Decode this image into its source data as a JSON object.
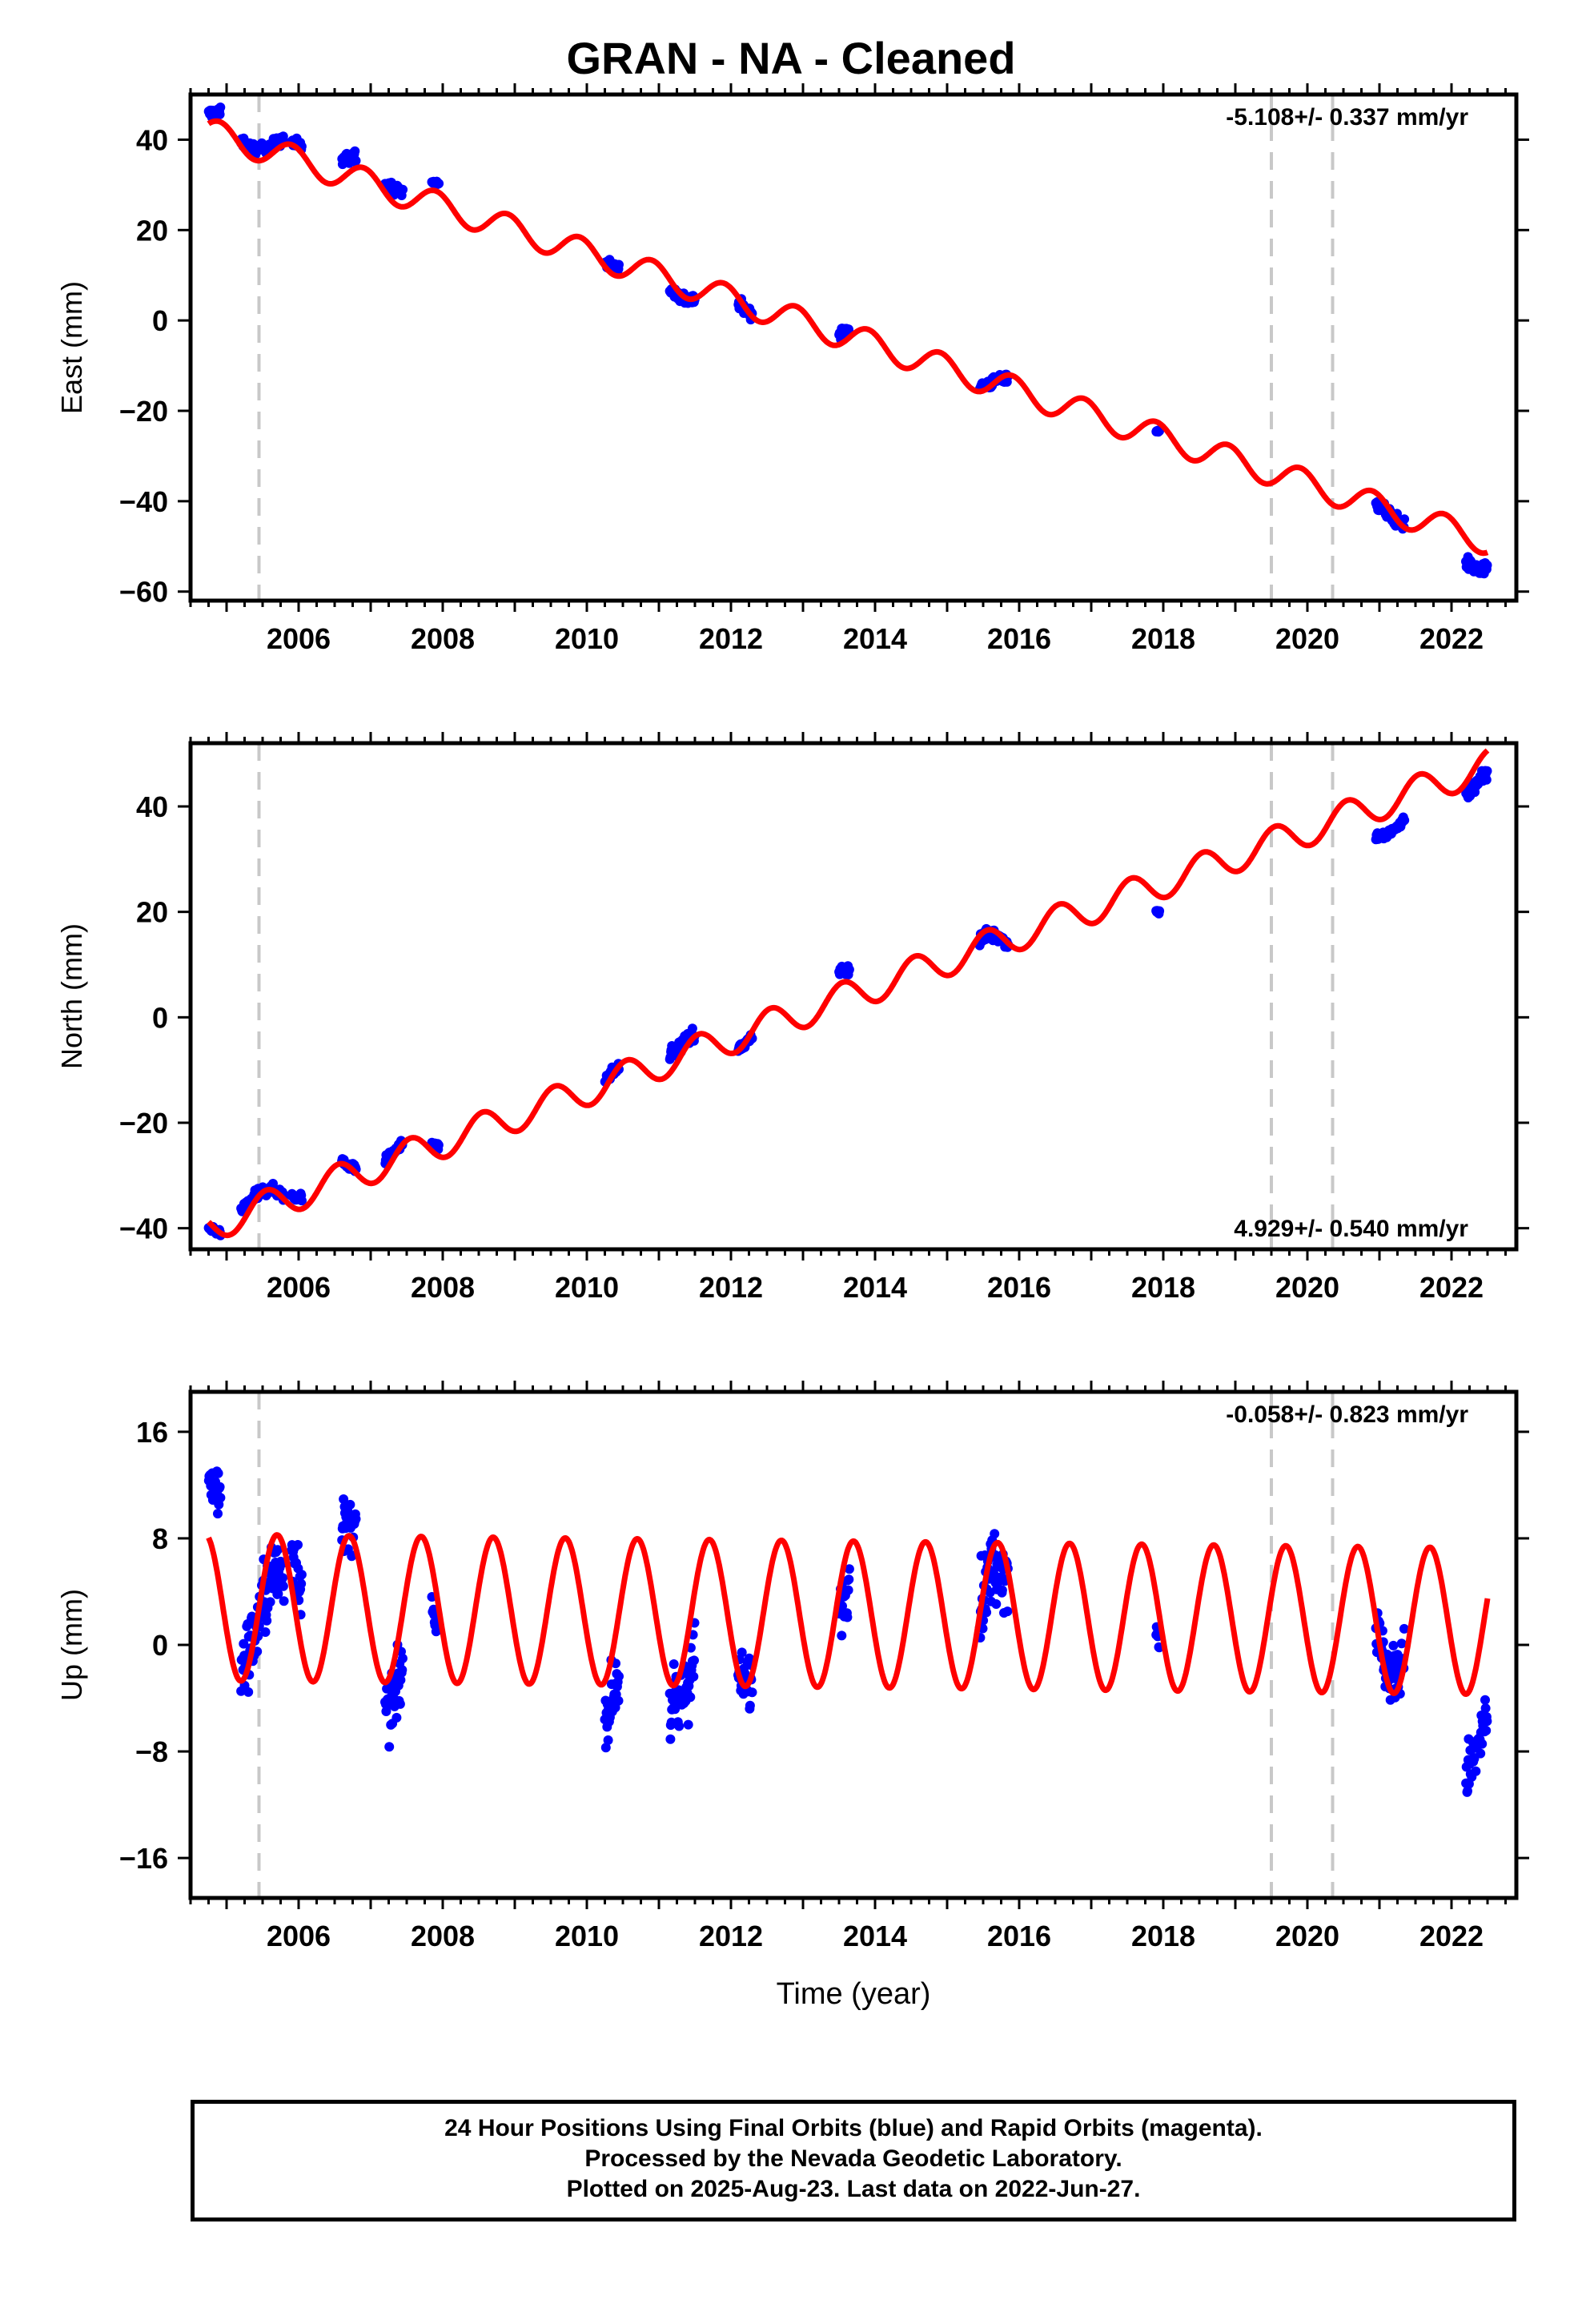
{
  "title": "GRAN  - NA - Cleaned",
  "footer": {
    "line1": "24 Hour Positions Using Final Orbits (blue) and Rapid Orbits (magenta).",
    "line2": "Processed by the Nevada Geodetic Laboratory.",
    "line3": "Plotted on 2025-Aug-23. Last data on 2022-Jun-27."
  },
  "colors": {
    "data": "#0000ff",
    "model": "#ff0000",
    "event_line": "#c8c8c8",
    "axes": "#000000"
  },
  "chart_data": [
    {
      "type": "scatter",
      "component": "East",
      "ylabel": "East (mm)",
      "xlabel": "",
      "xlim": [
        2004.5,
        2022.9
      ],
      "ylim": [
        -62,
        50
      ],
      "xticks": [
        2006,
        2008,
        2010,
        2012,
        2014,
        2016,
        2018,
        2020,
        2022
      ],
      "yticks": [
        -60,
        -40,
        -20,
        0,
        20,
        40
      ],
      "rate_label": "-5.108+/- 0.337 mm/yr",
      "rate_label_position": "top-right",
      "event_lines": [
        2005.45,
        2019.5,
        2020.35
      ],
      "model": {
        "offset_at_2005": 40.5,
        "rate": -5.108,
        "annual_amplitude": 3.0,
        "annual_phase_year": 2005.9
      },
      "data_segments": [
        {
          "start": 2004.75,
          "end": 2004.92,
          "anchor": 46.0,
          "scatter": 2.0
        },
        {
          "start": 2005.2,
          "end": 2005.8,
          "anchor": 38.0,
          "scatter": 2.0
        },
        {
          "start": 2005.9,
          "end": 2006.05,
          "anchor": 39.0,
          "scatter": 2.0
        },
        {
          "start": 2006.6,
          "end": 2006.8,
          "anchor": 36.0,
          "scatter": 2.5
        },
        {
          "start": 2007.2,
          "end": 2007.45,
          "anchor": 29.0,
          "scatter": 2.0
        },
        {
          "start": 2007.85,
          "end": 2007.95,
          "anchor": 30.5,
          "scatter": 1.0
        },
        {
          "start": 2010.25,
          "end": 2010.45,
          "anchor": 12.0,
          "scatter": 2.0
        },
        {
          "start": 2011.15,
          "end": 2011.5,
          "anchor": 5.0,
          "scatter": 2.5
        },
        {
          "start": 2012.1,
          "end": 2012.3,
          "anchor": 2.5,
          "scatter": 2.0
        },
        {
          "start": 2013.5,
          "end": 2013.65,
          "anchor": -2.5,
          "scatter": 2.0
        },
        {
          "start": 2015.45,
          "end": 2015.85,
          "anchor": -13.5,
          "scatter": 2.0
        },
        {
          "start": 2017.9,
          "end": 2017.95,
          "anchor": -24.5,
          "scatter": 0.5
        },
        {
          "start": 2020.95,
          "end": 2021.35,
          "anchor": -43.0,
          "scatter": 2.5
        },
        {
          "start": 2022.2,
          "end": 2022.5,
          "anchor": -55.0,
          "scatter": 2.5
        }
      ]
    },
    {
      "type": "scatter",
      "component": "North",
      "ylabel": "North (mm)",
      "xlabel": "",
      "xlim": [
        2004.5,
        2022.9
      ],
      "ylim": [
        -44,
        52
      ],
      "xticks": [
        2006,
        2008,
        2010,
        2012,
        2014,
        2016,
        2018,
        2020,
        2022
      ],
      "yticks": [
        -40,
        -20,
        0,
        20,
        40
      ],
      "rate_label": "4.929+/- 0.540 mm/yr",
      "rate_label_position": "bottom-right",
      "event_lines": [
        2005.45,
        2019.5,
        2020.35
      ],
      "model": {
        "offset_at_2005": -38.5,
        "rate": 4.929,
        "annual_amplitude": 3.0,
        "annual_phase_year": 2005.55
      },
      "data_segments": [
        {
          "start": 2004.75,
          "end": 2004.92,
          "anchor": -40.5,
          "scatter": 1.0
        },
        {
          "start": 2005.2,
          "end": 2005.8,
          "anchor": -33.0,
          "scatter": 1.8
        },
        {
          "start": 2005.9,
          "end": 2006.05,
          "anchor": -34.0,
          "scatter": 1.5
        },
        {
          "start": 2006.6,
          "end": 2006.8,
          "anchor": -28.0,
          "scatter": 1.5
        },
        {
          "start": 2007.2,
          "end": 2007.45,
          "anchor": -25.5,
          "scatter": 1.5
        },
        {
          "start": 2007.85,
          "end": 2007.95,
          "anchor": -24.5,
          "scatter": 1.0
        },
        {
          "start": 2010.25,
          "end": 2010.45,
          "anchor": -10.5,
          "scatter": 1.5
        },
        {
          "start": 2011.15,
          "end": 2011.5,
          "anchor": -5.0,
          "scatter": 2.5
        },
        {
          "start": 2012.1,
          "end": 2012.3,
          "anchor": -5.0,
          "scatter": 1.2
        },
        {
          "start": 2013.5,
          "end": 2013.65,
          "anchor": 9.0,
          "scatter": 1.5
        },
        {
          "start": 2015.45,
          "end": 2015.85,
          "anchor": 15.5,
          "scatter": 2.0
        },
        {
          "start": 2017.9,
          "end": 2017.95,
          "anchor": 20.0,
          "scatter": 0.8
        },
        {
          "start": 2020.95,
          "end": 2021.35,
          "anchor": 35.0,
          "scatter": 1.5
        },
        {
          "start": 2022.2,
          "end": 2022.5,
          "anchor": 44.5,
          "scatter": 2.5
        }
      ]
    },
    {
      "type": "scatter",
      "component": "Up",
      "ylabel": "Up (mm)",
      "xlabel": "Time (year)",
      "xlim": [
        2004.5,
        2022.9
      ],
      "ylim": [
        -19,
        19
      ],
      "xticks": [
        2006,
        2008,
        2010,
        2012,
        2014,
        2016,
        2018,
        2020,
        2022
      ],
      "yticks": [
        -16,
        -8,
        0,
        8,
        16
      ],
      "rate_label": "-0.058+/- 0.823 mm/yr",
      "rate_label_position": "top-right",
      "event_lines": [
        2005.45,
        2019.5,
        2020.35
      ],
      "model": {
        "offset_at_2005": 2.8,
        "rate": -0.058,
        "annual_amplitude": 5.5,
        "annual_phase_year": 2005.7
      },
      "data_segments": [
        {
          "start": 2004.75,
          "end": 2004.92,
          "anchor": 12.0,
          "scatter": 4.0
        },
        {
          "start": 2005.2,
          "end": 2005.8,
          "anchor": 3.0,
          "scatter": 5.0
        },
        {
          "start": 2005.9,
          "end": 2006.05,
          "anchor": 6.0,
          "scatter": 5.0
        },
        {
          "start": 2006.6,
          "end": 2006.8,
          "anchor": 9.0,
          "scatter": 4.0
        },
        {
          "start": 2007.2,
          "end": 2007.45,
          "anchor": -4.0,
          "scatter": 4.0
        },
        {
          "start": 2007.85,
          "end": 2007.95,
          "anchor": 2.0,
          "scatter": 1.5
        },
        {
          "start": 2010.25,
          "end": 2010.45,
          "anchor": -4.0,
          "scatter": 4.0
        },
        {
          "start": 2011.15,
          "end": 2011.5,
          "anchor": -4.0,
          "scatter": 5.0
        },
        {
          "start": 2012.1,
          "end": 2012.3,
          "anchor": -3.0,
          "scatter": 4.0
        },
        {
          "start": 2013.5,
          "end": 2013.65,
          "anchor": 4.0,
          "scatter": 4.0
        },
        {
          "start": 2015.45,
          "end": 2015.85,
          "anchor": 6.0,
          "scatter": 5.0
        },
        {
          "start": 2017.9,
          "end": 2017.95,
          "anchor": 1.0,
          "scatter": 2.0
        },
        {
          "start": 2020.95,
          "end": 2021.35,
          "anchor": -2.0,
          "scatter": 4.0
        },
        {
          "start": 2022.2,
          "end": 2022.5,
          "anchor": -8.0,
          "scatter": 4.0
        }
      ]
    }
  ]
}
